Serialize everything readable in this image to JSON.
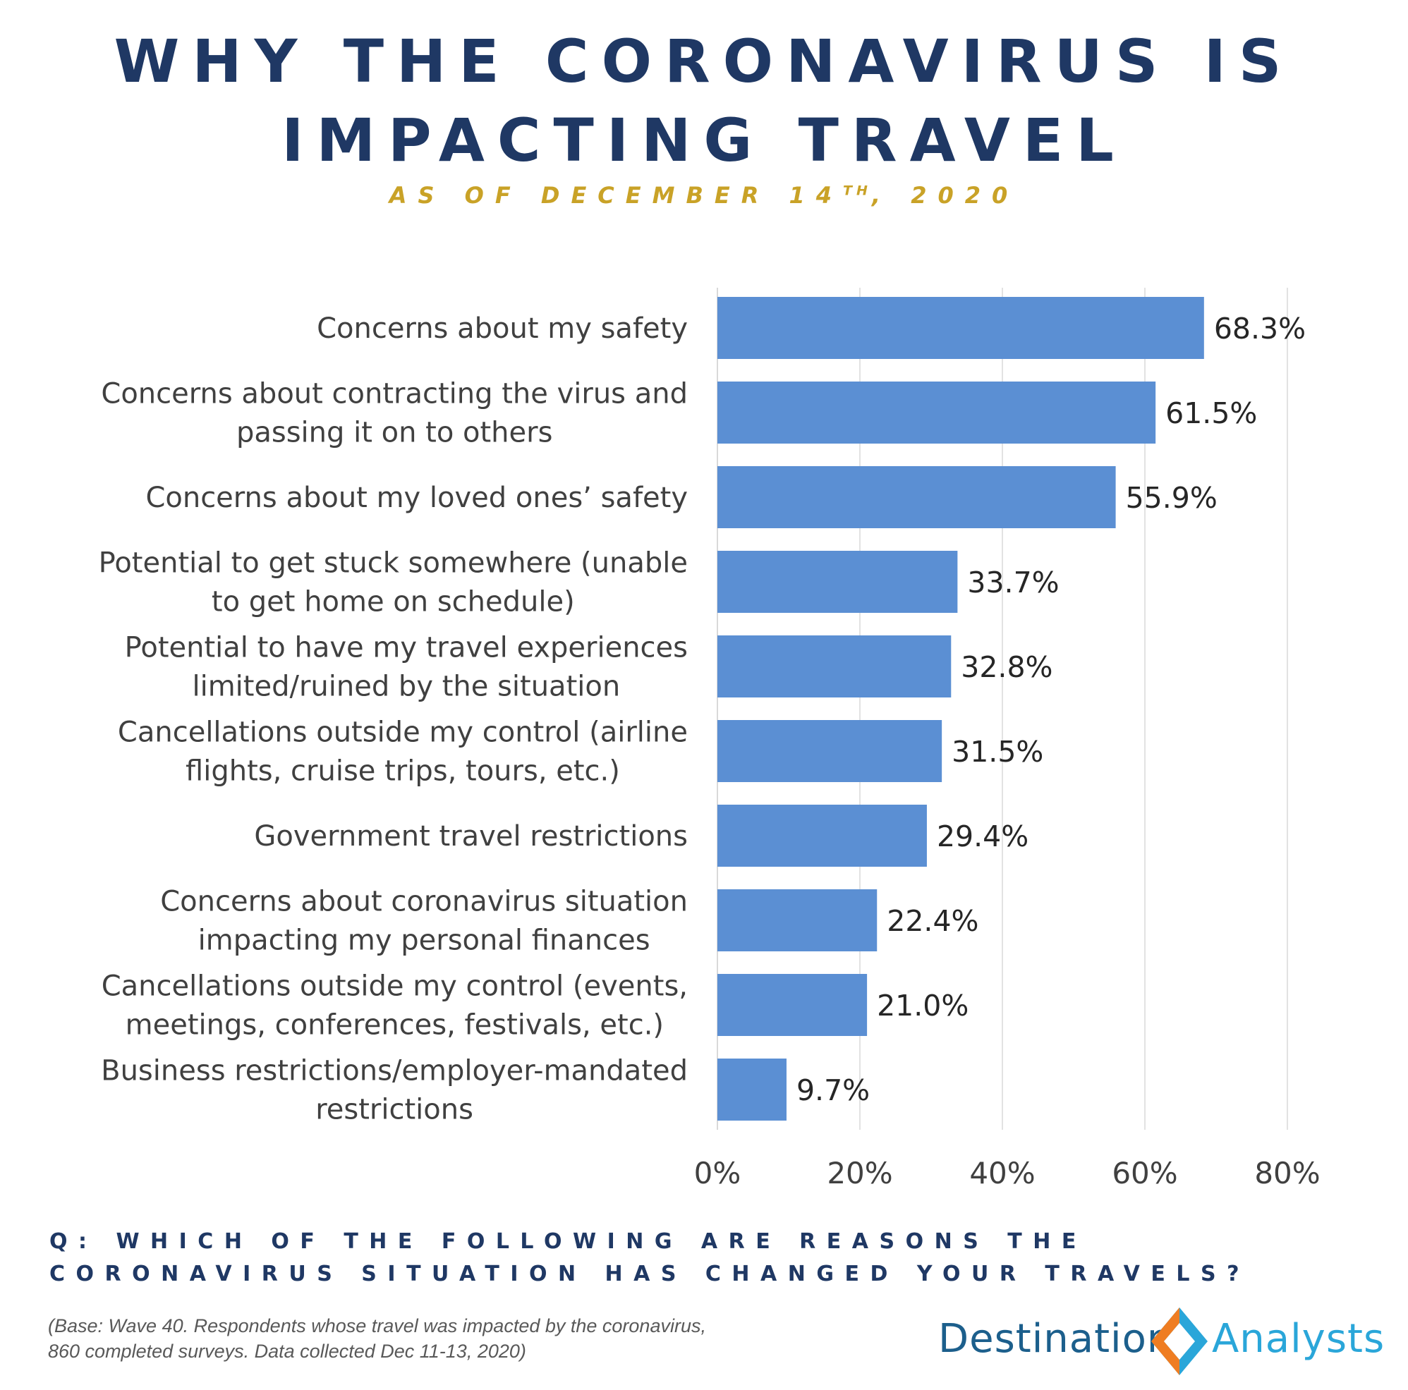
{
  "title_line1": "WHY THE CORONAVIRUS IS",
  "title_line2": "IMPACTING TRAVEL",
  "subtitle_prefix": "AS OF DECEMBER 14",
  "subtitle_sup": "TH",
  "subtitle_suffix": ", 2020",
  "question": "Q: WHICH OF THE FOLLOWING ARE REASONS THE CORONAVIRUS SITUATION HAS CHANGED YOUR TRAVELS?",
  "base_note_line1": "(Base: Wave 40. Respondents whose travel was impacted by the coronavirus,",
  "base_note_line2": "860 completed surveys. Data collected Dec 11-13, 2020)",
  "logo": {
    "word1": "Destination",
    "word2": "Analysts",
    "colors": [
      "#1c5f8c",
      "#2aa6d9",
      "#ef7d22"
    ]
  },
  "colors": {
    "bar": "#5b8fd3",
    "title": "#1f3864",
    "subtitle": "#c9a227",
    "grid": "#d9d9d9"
  },
  "chart_data": {
    "type": "bar",
    "orientation": "horizontal",
    "categories": [
      [
        "Concerns about my safety"
      ],
      [
        "Concerns about contracting the virus and",
        "passing it on to others"
      ],
      [
        "Concerns about my loved ones’ safety"
      ],
      [
        "Potential to get stuck somewhere (unable",
        "to get home on schedule)"
      ],
      [
        "Potential to have my travel experiences",
        "limited/ruined by the situation"
      ],
      [
        "Cancellations outside my control (airline",
        "flights, cruise trips, tours, etc.)"
      ],
      [
        "Government travel restrictions"
      ],
      [
        "Concerns about coronavirus situation",
        "impacting my personal finances"
      ],
      [
        "Cancellations outside my control (events,",
        "meetings, conferences, festivals, etc.)"
      ],
      [
        "Business restrictions/employer-mandated",
        "restrictions"
      ]
    ],
    "values": [
      68.3,
      61.5,
      55.9,
      33.7,
      32.8,
      31.5,
      29.4,
      22.4,
      21.0,
      9.7
    ],
    "value_labels": [
      "68.3%",
      "61.5%",
      "55.9%",
      "33.7%",
      "32.8%",
      "31.5%",
      "29.4%",
      "22.4%",
      "21.0%",
      "9.7%"
    ],
    "xlim": [
      0,
      80
    ],
    "xticks": [
      0,
      20,
      40,
      60,
      80
    ],
    "xtick_labels": [
      "0%",
      "20%",
      "40%",
      "60%",
      "80%"
    ],
    "grid": true,
    "legend": false
  }
}
